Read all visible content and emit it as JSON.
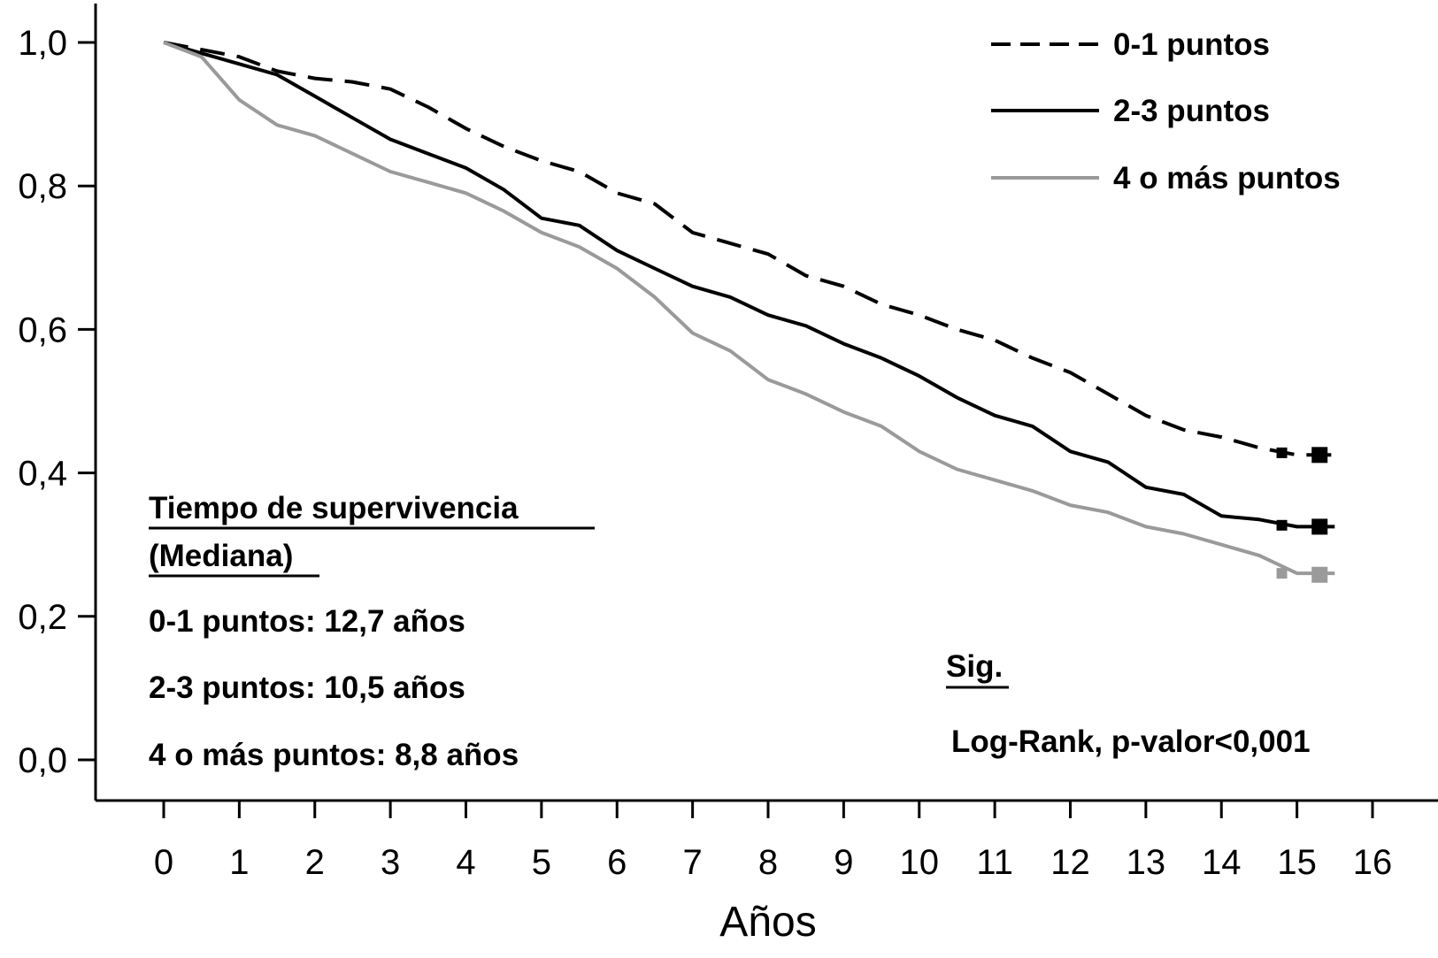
{
  "chart_data": {
    "type": "line",
    "title": "",
    "xlabel": "Años",
    "ylabel": "",
    "xlim": [
      0,
      16
    ],
    "ylim": [
      0,
      1
    ],
    "x_ticks": [
      0,
      1,
      2,
      3,
      4,
      5,
      6,
      7,
      8,
      9,
      10,
      11,
      12,
      13,
      14,
      15,
      16
    ],
    "x_tick_labels": [
      "0",
      "1",
      "2",
      "3",
      "4",
      "5",
      "6",
      "7",
      "8",
      "9",
      "10",
      "11",
      "12",
      "13",
      "14",
      "15",
      "16"
    ],
    "y_ticks": [
      0,
      0.2,
      0.4,
      0.6,
      0.8,
      1.0
    ],
    "y_tick_labels": [
      "0,0",
      "0,2",
      "0,4",
      "0,6",
      "0,8",
      "1,0"
    ],
    "grid": false,
    "legend": {
      "position": "top-right"
    },
    "series": [
      {
        "name": "0-1 puntos",
        "style": "dashed",
        "color": "#000000",
        "x": [
          0,
          0.5,
          1.0,
          1.5,
          2.0,
          2.5,
          3.0,
          3.5,
          4.0,
          4.5,
          5.0,
          5.5,
          6.0,
          6.5,
          7.0,
          7.5,
          8.0,
          8.5,
          9.0,
          9.5,
          10.0,
          10.5,
          11.0,
          11.5,
          12.0,
          12.5,
          13.0,
          13.5,
          14.0,
          14.5,
          15.0,
          15.5
        ],
        "y": [
          1.0,
          0.99,
          0.98,
          0.96,
          0.95,
          0.945,
          0.935,
          0.91,
          0.88,
          0.855,
          0.835,
          0.82,
          0.79,
          0.775,
          0.735,
          0.72,
          0.705,
          0.675,
          0.66,
          0.635,
          0.62,
          0.6,
          0.585,
          0.56,
          0.54,
          0.51,
          0.48,
          0.46,
          0.45,
          0.435,
          0.425,
          0.425
        ]
      },
      {
        "name": "2-3 puntos",
        "style": "solid",
        "color": "#000000",
        "x": [
          0,
          0.5,
          1.0,
          1.5,
          2.0,
          2.5,
          3.0,
          3.5,
          4.0,
          4.5,
          5.0,
          5.5,
          6.0,
          6.5,
          7.0,
          7.5,
          8.0,
          8.5,
          9.0,
          9.5,
          10.0,
          10.5,
          11.0,
          11.5,
          12.0,
          12.5,
          13.0,
          13.5,
          14.0,
          14.5,
          15.0,
          15.5
        ],
        "y": [
          1.0,
          0.985,
          0.97,
          0.955,
          0.925,
          0.895,
          0.865,
          0.845,
          0.825,
          0.795,
          0.755,
          0.745,
          0.71,
          0.685,
          0.66,
          0.645,
          0.62,
          0.605,
          0.58,
          0.56,
          0.535,
          0.505,
          0.48,
          0.465,
          0.43,
          0.415,
          0.38,
          0.37,
          0.34,
          0.335,
          0.325,
          0.325
        ]
      },
      {
        "name": "4 o más puntos",
        "style": "solid",
        "color": "#9a9a9a",
        "x": [
          0,
          0.5,
          1.0,
          1.5,
          2.0,
          2.5,
          3.0,
          3.5,
          4.0,
          4.5,
          5.0,
          5.5,
          6.0,
          6.5,
          7.0,
          7.5,
          8.0,
          8.5,
          9.0,
          9.5,
          10.0,
          10.5,
          11.0,
          11.5,
          12.0,
          12.5,
          13.0,
          13.5,
          14.0,
          14.5,
          15.0,
          15.5
        ],
        "y": [
          1.0,
          0.98,
          0.92,
          0.885,
          0.87,
          0.845,
          0.82,
          0.805,
          0.79,
          0.765,
          0.735,
          0.715,
          0.685,
          0.645,
          0.595,
          0.57,
          0.53,
          0.51,
          0.485,
          0.465,
          0.43,
          0.405,
          0.39,
          0.375,
          0.355,
          0.345,
          0.325,
          0.315,
          0.3,
          0.285,
          0.26,
          0.26
        ]
      }
    ],
    "censor_marks": [
      {
        "series": 0,
        "x": [
          14.8,
          15.3
        ],
        "y": [
          0.428,
          0.425
        ]
      },
      {
        "series": 1,
        "x": [
          14.8,
          15.3
        ],
        "y": [
          0.327,
          0.325
        ]
      },
      {
        "series": 2,
        "x": [
          14.8,
          15.3
        ],
        "y": [
          0.26,
          0.258
        ]
      }
    ],
    "annotations": {
      "median_header_1": "Tiempo de supervivencia",
      "median_header_2": "(Mediana)",
      "median_lines": [
        "0-1 puntos: 12,7 años",
        "2-3 puntos: 10,5 años",
        "4 o más puntos: 8,8 años"
      ],
      "sig_header": "Sig.",
      "sig_text": "Log-Rank, p-valor<0,001"
    }
  }
}
